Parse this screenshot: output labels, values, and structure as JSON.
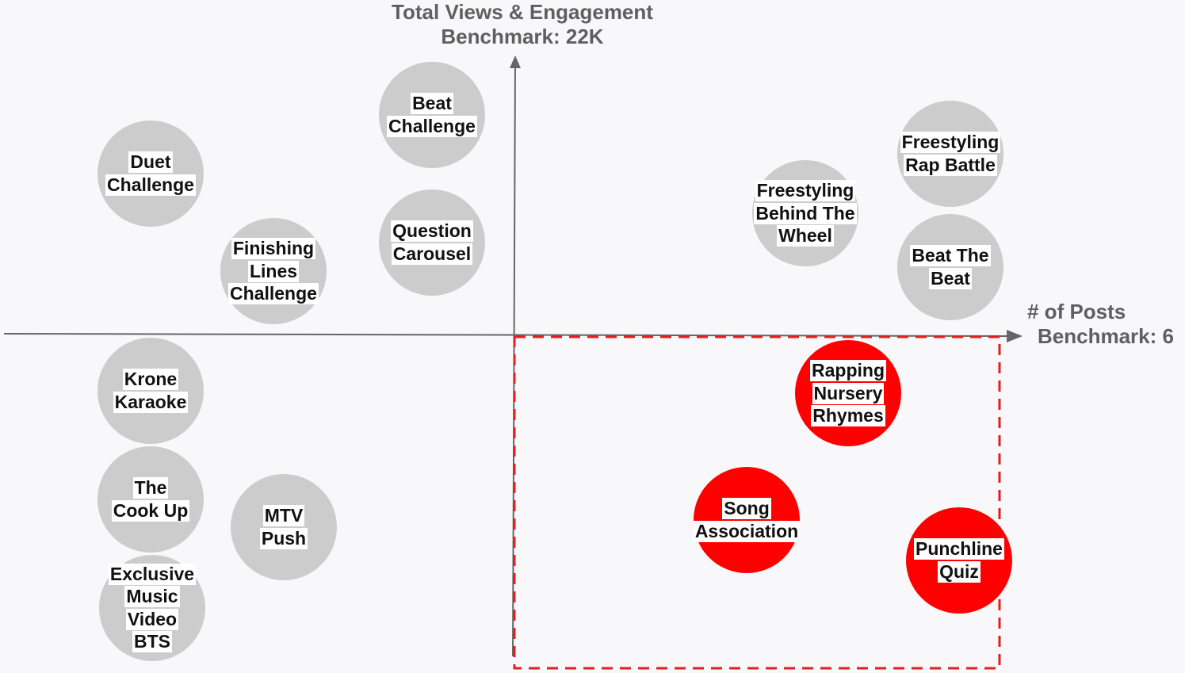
{
  "y_axis": {
    "title_line1": "Total Views & Engagement",
    "title_line2": "Benchmark: 22K"
  },
  "x_axis": {
    "title_line1": "# of Posts",
    "title_line2": "Benchmark: 6"
  },
  "colors": {
    "axis": "#666666",
    "bubble_default": "#cccccc",
    "bubble_highlight": "#ff0000",
    "highlight_border": "#e02020"
  },
  "bubbles": [
    {
      "id": "beat-challenge",
      "lines": [
        "Beat",
        "Challenge"
      ],
      "highlight": false
    },
    {
      "id": "duet-challenge",
      "lines": [
        "Duet",
        "Challenge"
      ],
      "highlight": false
    },
    {
      "id": "question-carousel",
      "lines": [
        "Question",
        "Carousel"
      ],
      "highlight": false
    },
    {
      "id": "finishing-lines-challenge",
      "lines": [
        "Finishing",
        "Lines",
        "Challenge"
      ],
      "highlight": false
    },
    {
      "id": "freestyling-rap-battle",
      "lines": [
        "Freestyling",
        "Rap Battle"
      ],
      "highlight": false
    },
    {
      "id": "freestyling-behind-the-wheel",
      "lines": [
        "Freestyling",
        "Behind The",
        "Wheel"
      ],
      "highlight": false
    },
    {
      "id": "beat-the-beat",
      "lines": [
        "Beat The",
        "Beat"
      ],
      "highlight": false
    },
    {
      "id": "krone-karaoke",
      "lines": [
        "Krone",
        "Karaoke"
      ],
      "highlight": false
    },
    {
      "id": "the-cook-up",
      "lines": [
        "The",
        "Cook Up"
      ],
      "highlight": false
    },
    {
      "id": "mtv-push",
      "lines": [
        "MTV",
        "Push"
      ],
      "highlight": false
    },
    {
      "id": "exclusive-music-video-bts",
      "lines": [
        "Exclusive",
        "Music",
        "Video",
        "BTS"
      ],
      "highlight": false
    },
    {
      "id": "rapping-nursery-rhymes",
      "lines": [
        "Rapping",
        "Nursery",
        "Rhymes"
      ],
      "highlight": true
    },
    {
      "id": "song-association",
      "lines": [
        "Song",
        "Association"
      ],
      "highlight": true
    },
    {
      "id": "punchline-quiz",
      "lines": [
        "Punchline",
        "Quiz"
      ],
      "highlight": true
    }
  ]
}
